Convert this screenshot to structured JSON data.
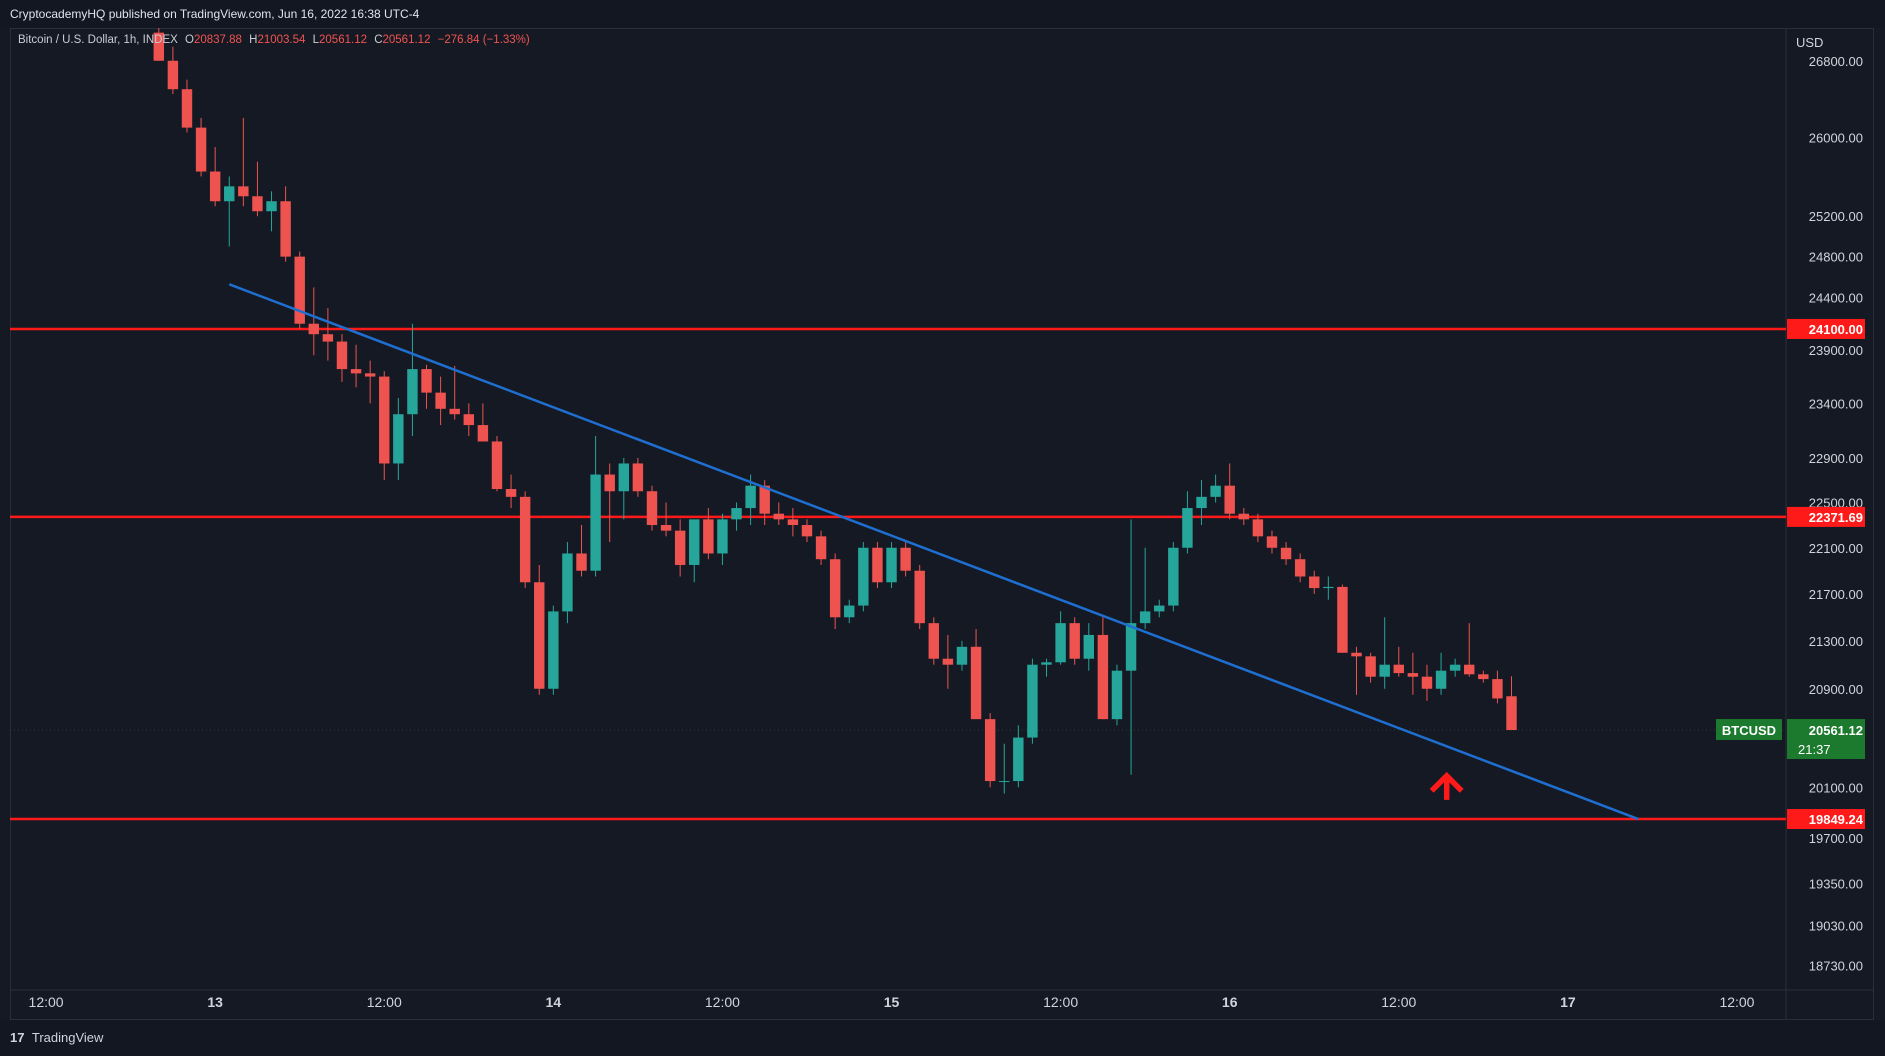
{
  "header": {
    "publisher_line": "CryptocademyHQ published on TradingView.com, Jun 16, 2022 16:38 UTC-4"
  },
  "legend": {
    "symbol": "Bitcoin / U.S. Dollar, 1h, INDEX",
    "open_label": "O",
    "open": "20837.88",
    "high_label": "H",
    "high": "21003.54",
    "low_label": "L",
    "low": "20561.12",
    "close_label": "C",
    "close": "20561.12",
    "change": "−276.84 (−1.33%)"
  },
  "footer": {
    "logo": "17",
    "brand": "TradingView"
  },
  "colors": {
    "background": "#151924",
    "up": "#26a69a",
    "down": "#ef5350",
    "level_line": "#ff1a1a",
    "trend_line": "#1e6fd0",
    "arrow": "#ff1a1a",
    "price_tag": "#1b7a2e"
  },
  "chart_data": {
    "type": "candlestick",
    "symbol": "BTCUSD",
    "interval": "1h",
    "currency_label": "USD",
    "y_scale": "log",
    "ylim": [
      18550,
      27150
    ],
    "y_ticks": [
      26800,
      26000,
      25200,
      24800,
      24400,
      23900,
      23400,
      22900,
      22500,
      22100,
      21700,
      21300,
      20900,
      20100,
      19700,
      19350,
      19030,
      18730
    ],
    "x_ticks": [
      {
        "t": -12,
        "label": "12:00",
        "bold": false
      },
      {
        "t": 0,
        "label": "13",
        "bold": true
      },
      {
        "t": 12,
        "label": "12:00",
        "bold": false
      },
      {
        "t": 24,
        "label": "14",
        "bold": true
      },
      {
        "t": 36,
        "label": "12:00",
        "bold": false
      },
      {
        "t": 48,
        "label": "15",
        "bold": true
      },
      {
        "t": 60,
        "label": "12:00",
        "bold": false
      },
      {
        "t": 72,
        "label": "16",
        "bold": true
      },
      {
        "t": 84,
        "label": "12:00",
        "bold": false
      },
      {
        "t": 96,
        "label": "17",
        "bold": true
      },
      {
        "t": 108,
        "label": "12:00",
        "bold": false
      }
    ],
    "x_range_hours": [
      -14.56,
      111.48
    ],
    "levels": [
      {
        "value": 24100.0,
        "label": "24100.00"
      },
      {
        "value": 22371.69,
        "label": "22371.69"
      },
      {
        "value": 19849.24,
        "label": "19849.24"
      }
    ],
    "trendline": {
      "from": {
        "t": 1,
        "price": 24530
      },
      "to": {
        "t": 101,
        "price": 19849.24
      }
    },
    "last_price": {
      "label": "BTCUSD",
      "value": "20561.12",
      "countdown": "21:37",
      "price": 20561.12
    },
    "arrow_marker": {
      "t": 87.4,
      "price": 20120
    },
    "candles": [
      {
        "t": -4,
        "o": 27100,
        "h": 27200,
        "l": 26800,
        "c": 26800
      },
      {
        "t": -3,
        "o": 26800,
        "h": 26950,
        "l": 26450,
        "c": 26500
      },
      {
        "t": -2,
        "o": 26500,
        "h": 26600,
        "l": 26050,
        "c": 26100
      },
      {
        "t": -1,
        "o": 26100,
        "h": 26200,
        "l": 25600,
        "c": 25650
      },
      {
        "t": 0,
        "o": 25650,
        "h": 25900,
        "l": 25300,
        "c": 25350
      },
      {
        "t": 1,
        "o": 25350,
        "h": 25600,
        "l": 24900,
        "c": 25500
      },
      {
        "t": 2,
        "o": 25500,
        "h": 26200,
        "l": 25300,
        "c": 25400
      },
      {
        "t": 3,
        "o": 25400,
        "h": 25750,
        "l": 25200,
        "c": 25250
      },
      {
        "t": 4,
        "o": 25250,
        "h": 25450,
        "l": 25050,
        "c": 25350
      },
      {
        "t": 5,
        "o": 25350,
        "h": 25500,
        "l": 24750,
        "c": 24800
      },
      {
        "t": 6,
        "o": 24800,
        "h": 24850,
        "l": 24100,
        "c": 24150
      },
      {
        "t": 7,
        "o": 24150,
        "h": 24500,
        "l": 23850,
        "c": 24050
      },
      {
        "t": 8,
        "o": 24050,
        "h": 24300,
        "l": 23800,
        "c": 23980
      },
      {
        "t": 9,
        "o": 23980,
        "h": 24050,
        "l": 23600,
        "c": 23720
      },
      {
        "t": 10,
        "o": 23720,
        "h": 23950,
        "l": 23550,
        "c": 23680
      },
      {
        "t": 11,
        "o": 23680,
        "h": 23800,
        "l": 23400,
        "c": 23650
      },
      {
        "t": 12,
        "o": 23650,
        "h": 23700,
        "l": 22700,
        "c": 22850
      },
      {
        "t": 13,
        "o": 22850,
        "h": 23450,
        "l": 22700,
        "c": 23300
      },
      {
        "t": 14,
        "o": 23300,
        "h": 24150,
        "l": 23100,
        "c": 23720
      },
      {
        "t": 15,
        "o": 23720,
        "h": 23760,
        "l": 23350,
        "c": 23500
      },
      {
        "t": 16,
        "o": 23500,
        "h": 23650,
        "l": 23200,
        "c": 23350
      },
      {
        "t": 17,
        "o": 23350,
        "h": 23750,
        "l": 23250,
        "c": 23300
      },
      {
        "t": 18,
        "o": 23300,
        "h": 23400,
        "l": 23100,
        "c": 23200
      },
      {
        "t": 19,
        "o": 23200,
        "h": 23400,
        "l": 23050,
        "c": 23050
      },
      {
        "t": 20,
        "o": 23050,
        "h": 23100,
        "l": 22600,
        "c": 22620
      },
      {
        "t": 21,
        "o": 22620,
        "h": 22750,
        "l": 22450,
        "c": 22550
      },
      {
        "t": 22,
        "o": 22550,
        "h": 22600,
        "l": 21750,
        "c": 21800
      },
      {
        "t": 23,
        "o": 21800,
        "h": 21950,
        "l": 20850,
        "c": 20900
      },
      {
        "t": 24,
        "o": 20900,
        "h": 21600,
        "l": 20850,
        "c": 21550
      },
      {
        "t": 25,
        "o": 21550,
        "h": 22150,
        "l": 21450,
        "c": 22050
      },
      {
        "t": 26,
        "o": 22050,
        "h": 22300,
        "l": 21850,
        "c": 21900
      },
      {
        "t": 27,
        "o": 21900,
        "h": 23100,
        "l": 21850,
        "c": 22750
      },
      {
        "t": 28,
        "o": 22750,
        "h": 22850,
        "l": 22150,
        "c": 22600
      },
      {
        "t": 29,
        "o": 22600,
        "h": 22900,
        "l": 22350,
        "c": 22850
      },
      {
        "t": 30,
        "o": 22850,
        "h": 22900,
        "l": 22550,
        "c": 22600
      },
      {
        "t": 31,
        "o": 22600,
        "h": 22650,
        "l": 22250,
        "c": 22300
      },
      {
        "t": 32,
        "o": 22300,
        "h": 22500,
        "l": 22200,
        "c": 22250
      },
      {
        "t": 33,
        "o": 22250,
        "h": 22350,
        "l": 21850,
        "c": 21950
      },
      {
        "t": 34,
        "o": 21950,
        "h": 22300,
        "l": 21800,
        "c": 22350
      },
      {
        "t": 35,
        "o": 22350,
        "h": 22450,
        "l": 22000,
        "c": 22050
      },
      {
        "t": 36,
        "o": 22050,
        "h": 22400,
        "l": 21950,
        "c": 22350
      },
      {
        "t": 37,
        "o": 22350,
        "h": 22500,
        "l": 22250,
        "c": 22450
      },
      {
        "t": 38,
        "o": 22450,
        "h": 22750,
        "l": 22300,
        "c": 22650
      },
      {
        "t": 39,
        "o": 22650,
        "h": 22700,
        "l": 22300,
        "c": 22400
      },
      {
        "t": 40,
        "o": 22400,
        "h": 22500,
        "l": 22300,
        "c": 22350
      },
      {
        "t": 41,
        "o": 22350,
        "h": 22450,
        "l": 22200,
        "c": 22300
      },
      {
        "t": 42,
        "o": 22300,
        "h": 22350,
        "l": 22150,
        "c": 22200
      },
      {
        "t": 43,
        "o": 22200,
        "h": 22250,
        "l": 21950,
        "c": 22000
      },
      {
        "t": 44,
        "o": 22000,
        "h": 22050,
        "l": 21400,
        "c": 21500
      },
      {
        "t": 45,
        "o": 21500,
        "h": 21650,
        "l": 21450,
        "c": 21600
      },
      {
        "t": 46,
        "o": 21600,
        "h": 22150,
        "l": 21550,
        "c": 22100
      },
      {
        "t": 47,
        "o": 22100,
        "h": 22150,
        "l": 21750,
        "c": 21800
      },
      {
        "t": 48,
        "o": 21800,
        "h": 22150,
        "l": 21750,
        "c": 22100
      },
      {
        "t": 49,
        "o": 22100,
        "h": 22150,
        "l": 21850,
        "c": 21900
      },
      {
        "t": 50,
        "o": 21900,
        "h": 21950,
        "l": 21400,
        "c": 21450
      },
      {
        "t": 51,
        "o": 21450,
        "h": 21500,
        "l": 21100,
        "c": 21150
      },
      {
        "t": 52,
        "o": 21150,
        "h": 21350,
        "l": 20900,
        "c": 21100
      },
      {
        "t": 53,
        "o": 21100,
        "h": 21300,
        "l": 21050,
        "c": 21250
      },
      {
        "t": 54,
        "o": 21250,
        "h": 21400,
        "l": 20650,
        "c": 20650
      },
      {
        "t": 55,
        "o": 20650,
        "h": 20700,
        "l": 20100,
        "c": 20150
      },
      {
        "t": 56,
        "o": 20150,
        "h": 20450,
        "l": 20050,
        "c": 20150
      },
      {
        "t": 57,
        "o": 20150,
        "h": 20600,
        "l": 20100,
        "c": 20500
      },
      {
        "t": 58,
        "o": 20500,
        "h": 21150,
        "l": 20450,
        "c": 21100
      },
      {
        "t": 59,
        "o": 21100,
        "h": 21150,
        "l": 21000,
        "c": 21120
      },
      {
        "t": 60,
        "o": 21120,
        "h": 21550,
        "l": 21100,
        "c": 21450
      },
      {
        "t": 61,
        "o": 21450,
        "h": 21500,
        "l": 21100,
        "c": 21150
      },
      {
        "t": 62,
        "o": 21150,
        "h": 21450,
        "l": 21050,
        "c": 21350
      },
      {
        "t": 63,
        "o": 21350,
        "h": 21500,
        "l": 20650,
        "c": 20650
      },
      {
        "t": 64,
        "o": 20650,
        "h": 21100,
        "l": 20600,
        "c": 21050
      },
      {
        "t": 65,
        "o": 21050,
        "h": 22350,
        "l": 20200,
        "c": 21450
      },
      {
        "t": 66,
        "o": 21450,
        "h": 22100,
        "l": 21400,
        "c": 21550
      },
      {
        "t": 67,
        "o": 21550,
        "h": 21650,
        "l": 21500,
        "c": 21600
      },
      {
        "t": 68,
        "o": 21600,
        "h": 22150,
        "l": 21550,
        "c": 22100
      },
      {
        "t": 69,
        "o": 22100,
        "h": 22600,
        "l": 22050,
        "c": 22450
      },
      {
        "t": 70,
        "o": 22450,
        "h": 22700,
        "l": 22300,
        "c": 22550
      },
      {
        "t": 71,
        "o": 22550,
        "h": 22750,
        "l": 22500,
        "c": 22650
      },
      {
        "t": 72,
        "o": 22650,
        "h": 22850,
        "l": 22350,
        "c": 22400
      },
      {
        "t": 73,
        "o": 22400,
        "h": 22450,
        "l": 22300,
        "c": 22350
      },
      {
        "t": 74,
        "o": 22350,
        "h": 22400,
        "l": 22150,
        "c": 22200
      },
      {
        "t": 75,
        "o": 22200,
        "h": 22250,
        "l": 22050,
        "c": 22100
      },
      {
        "t": 76,
        "o": 22100,
        "h": 22150,
        "l": 21950,
        "c": 22000
      },
      {
        "t": 77,
        "o": 22000,
        "h": 22050,
        "l": 21800,
        "c": 21850
      },
      {
        "t": 78,
        "o": 21850,
        "h": 21900,
        "l": 21700,
        "c": 21750
      },
      {
        "t": 79,
        "o": 21750,
        "h": 21850,
        "l": 21650,
        "c": 21760
      },
      {
        "t": 80,
        "o": 21760,
        "h": 21780,
        "l": 21200,
        "c": 21200
      },
      {
        "t": 81,
        "o": 21200,
        "h": 21250,
        "l": 20850,
        "c": 21170
      },
      {
        "t": 82,
        "o": 21170,
        "h": 21200,
        "l": 20950,
        "c": 21000
      },
      {
        "t": 83,
        "o": 21000,
        "h": 21500,
        "l": 20900,
        "c": 21100
      },
      {
        "t": 84,
        "o": 21100,
        "h": 21250,
        "l": 21000,
        "c": 21030
      },
      {
        "t": 85,
        "o": 21030,
        "h": 21200,
        "l": 20850,
        "c": 21000
      },
      {
        "t": 86,
        "o": 21000,
        "h": 21100,
        "l": 20800,
        "c": 20900
      },
      {
        "t": 87,
        "o": 20900,
        "h": 21200,
        "l": 20850,
        "c": 21050
      },
      {
        "t": 88,
        "o": 21050,
        "h": 21150,
        "l": 21000,
        "c": 21100
      },
      {
        "t": 89,
        "o": 21100,
        "h": 21450,
        "l": 21000,
        "c": 21020
      },
      {
        "t": 90,
        "o": 21020,
        "h": 21050,
        "l": 20950,
        "c": 20980
      },
      {
        "t": 91,
        "o": 20980,
        "h": 21050,
        "l": 20780,
        "c": 20820
      },
      {
        "t": 92,
        "o": 20837.88,
        "h": 21003.54,
        "l": 20561.12,
        "c": 20561.12
      }
    ]
  }
}
